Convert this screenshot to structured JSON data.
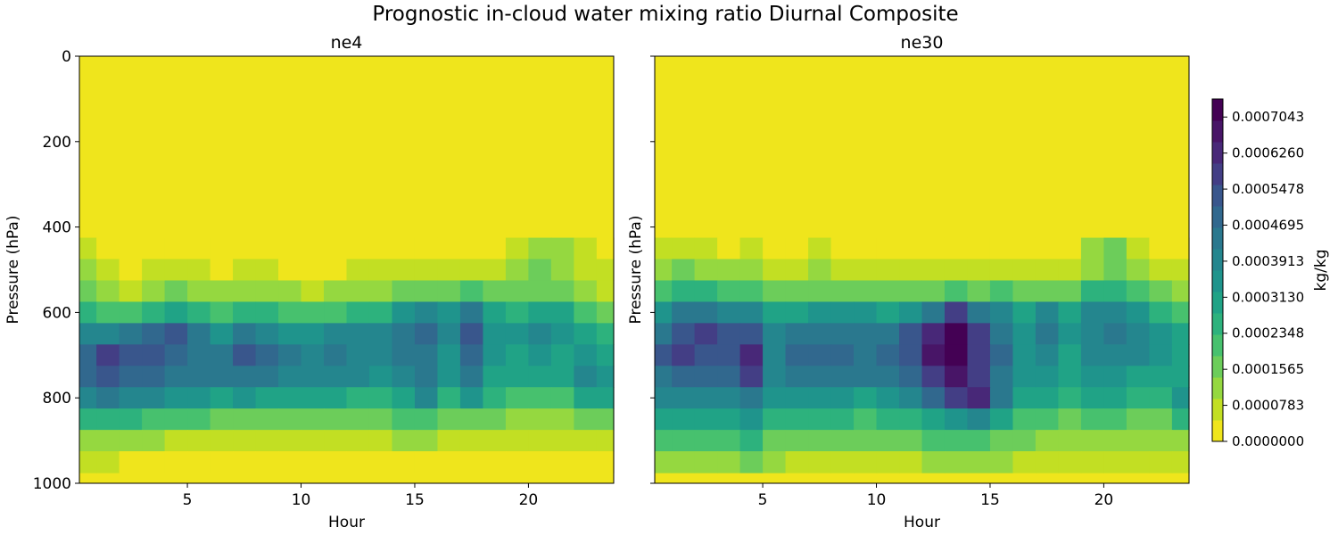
{
  "figure_title": "Prognostic in-cloud water mixing ratio Diurnal Composite",
  "colorbar": {
    "label": "kg/kg",
    "range": [
      0.0,
      0.0007435
    ],
    "tick_values": [
      0.0,
      7.83e-05,
      0.0001565,
      0.0002348,
      0.000313,
      0.0003913,
      0.0004695,
      0.0005478,
      0.000626,
      0.0007043
    ],
    "tick_labels": [
      "0.0000000",
      "0.0000783",
      "0.0001565",
      "0.0002348",
      "0.0003130",
      "0.0003913",
      "0.0004695",
      "0.0005478",
      "0.0006260",
      "0.0007043"
    ],
    "colors": [
      "#efe51c",
      "#c2df23",
      "#95d840",
      "#6ccd5a",
      "#47c16e",
      "#2db27d",
      "#20a386",
      "#1f948c",
      "#24868e",
      "#2a788e",
      "#31688e",
      "#39568c",
      "#433e85",
      "#482878",
      "#481567",
      "#440154"
    ]
  },
  "chart_data": [
    {
      "type": "heatmap",
      "subtitle": "ne4",
      "xlabel": "Hour",
      "ylabel": "Pressure (hPa)",
      "x_ticks": [
        5,
        10,
        15,
        20
      ],
      "y_ticks": [
        0,
        200,
        400,
        600,
        800,
        1000
      ],
      "xlim": [
        0.25,
        23.75
      ],
      "ylim": [
        1000,
        0
      ],
      "y_inverted": true,
      "x": [
        0.5,
        1.5,
        2.5,
        3.5,
        4.5,
        5.5,
        6.5,
        7.5,
        8.5,
        9.5,
        10.5,
        11.5,
        12.5,
        13.5,
        14.5,
        15.5,
        16.5,
        17.5,
        18.5,
        19.5,
        20.5,
        21.5,
        22.5,
        23.5
      ],
      "y": [
        450,
        500,
        550,
        600,
        650,
        700,
        750,
        800,
        850,
        900,
        950
      ],
      "z_units": "kg/kg",
      "z": [
        [
          6e-05,
          2e-05,
          1e-05,
          2e-05,
          3e-05,
          3e-05,
          1e-05,
          2e-05,
          3e-05,
          2e-05,
          1e-05,
          2e-05,
          3e-05,
          2e-05,
          3e-05,
          3e-05,
          2e-05,
          2e-05,
          3e-05,
          8e-05,
          0.00012,
          0.0001,
          5e-05,
          3e-05
        ],
        [
          0.0001,
          5e-05,
          3e-05,
          5e-05,
          7e-05,
          6e-05,
          4e-05,
          5e-05,
          6e-05,
          4e-05,
          3e-05,
          4e-05,
          6e-05,
          5e-05,
          7e-05,
          7e-05,
          6e-05,
          6e-05,
          6e-05,
          0.0001,
          0.00014,
          0.00012,
          8e-05,
          5e-05
        ],
        [
          0.00016,
          0.0001,
          8e-05,
          0.00012,
          0.00014,
          0.00012,
          0.0001,
          0.00011,
          0.00012,
          0.0001,
          8e-05,
          0.0001,
          0.00012,
          0.00011,
          0.00016,
          0.00018,
          0.00016,
          0.00019,
          0.00015,
          0.00015,
          0.00018,
          0.00016,
          0.00012,
          9e-05
        ],
        [
          0.00026,
          0.00022,
          0.00023,
          0.00026,
          0.0003,
          0.00026,
          0.00022,
          0.00026,
          0.00025,
          0.00022,
          0.0002,
          0.00022,
          0.00025,
          0.00024,
          0.00033,
          0.0004,
          0.00034,
          0.00044,
          0.0003,
          0.00026,
          0.00032,
          0.0003,
          0.00022,
          0.00018
        ],
        [
          0.00038,
          0.00038,
          0.00045,
          0.0005,
          0.00052,
          0.00042,
          0.00036,
          0.00046,
          0.0004,
          0.00036,
          0.00034,
          0.00038,
          0.0004,
          0.00039,
          0.00046,
          0.0005,
          0.0004,
          0.00054,
          0.00036,
          0.00034,
          0.0004,
          0.00036,
          0.0003,
          0.00026
        ],
        [
          0.0005,
          0.00056,
          0.00054,
          0.00052,
          0.0005,
          0.00046,
          0.00044,
          0.00054,
          0.00048,
          0.00042,
          0.0004,
          0.00044,
          0.0004,
          0.00038,
          0.00042,
          0.00044,
          0.00036,
          0.00048,
          0.00034,
          0.00032,
          0.00036,
          0.0003,
          0.00034,
          0.00032
        ],
        [
          0.00048,
          0.00052,
          0.0005,
          0.00048,
          0.00046,
          0.00044,
          0.00042,
          0.00046,
          0.00044,
          0.0004,
          0.00038,
          0.0004,
          0.00038,
          0.00036,
          0.0004,
          0.00046,
          0.00034,
          0.00044,
          0.00032,
          0.0003,
          0.00032,
          0.00028,
          0.0004,
          0.00036
        ],
        [
          0.00038,
          0.00042,
          0.0004,
          0.00038,
          0.00036,
          0.00036,
          0.00032,
          0.00034,
          0.00032,
          0.0003,
          0.00028,
          0.00028,
          0.00026,
          0.00026,
          0.00032,
          0.0004,
          0.00026,
          0.00034,
          0.00026,
          0.00022,
          0.00022,
          0.0002,
          0.0003,
          0.00028
        ],
        [
          0.00024,
          0.00026,
          0.00024,
          0.00022,
          0.0002,
          0.0002,
          0.00018,
          0.00018,
          0.00018,
          0.00017,
          0.00016,
          0.00016,
          0.00015,
          0.00016,
          0.0002,
          0.00022,
          0.00016,
          0.00018,
          0.00016,
          0.00013,
          0.00013,
          0.00012,
          0.00016,
          0.00015
        ],
        [
          0.00012,
          0.00012,
          0.0001,
          0.0001,
          9e-05,
          9e-05,
          8e-05,
          8e-05,
          8e-05,
          8e-05,
          8e-05,
          8e-05,
          8e-05,
          8e-05,
          0.0001,
          0.00011,
          8e-05,
          9e-05,
          8e-05,
          7e-05,
          7e-05,
          6e-05,
          8e-05,
          8e-05
        ],
        [
          5e-05,
          5e-05,
          3e-05,
          3e-05,
          3e-05,
          3e-05,
          2e-05,
          2e-05,
          2e-05,
          2e-05,
          2e-05,
          2e-05,
          2e-05,
          3e-05,
          4e-05,
          4e-05,
          2e-05,
          3e-05,
          2e-05,
          2e-05,
          2e-05,
          2e-05,
          3e-05,
          3e-05
        ]
      ]
    },
    {
      "type": "heatmap",
      "subtitle": "ne30",
      "xlabel": "Hour",
      "ylabel": "Pressure (hPa)",
      "x_ticks": [
        5,
        10,
        15,
        20
      ],
      "y_ticks": [
        0,
        200,
        400,
        600,
        800,
        1000
      ],
      "xlim": [
        0.25,
        23.75
      ],
      "ylim": [
        1000,
        0
      ],
      "y_inverted": true,
      "x": [
        0.5,
        1.5,
        2.5,
        3.5,
        4.5,
        5.5,
        6.5,
        7.5,
        8.5,
        9.5,
        10.5,
        11.5,
        12.5,
        13.5,
        14.5,
        15.5,
        16.5,
        17.5,
        18.5,
        19.5,
        20.5,
        21.5,
        22.5,
        23.5
      ],
      "y": [
        450,
        500,
        550,
        600,
        650,
        700,
        750,
        800,
        850,
        900,
        950
      ],
      "z_units": "kg/kg",
      "z": [
        [
          6e-05,
          8e-05,
          6e-05,
          4e-05,
          5e-05,
          3e-05,
          4e-05,
          5e-05,
          3e-05,
          4e-05,
          3e-05,
          2e-05,
          3e-05,
          3e-05,
          4e-05,
          3e-05,
          2e-05,
          2e-05,
          3e-05,
          0.0001,
          0.00014,
          6e-05,
          4e-05,
          3e-05
        ],
        [
          0.00012,
          0.00014,
          0.00012,
          0.0001,
          0.0001,
          8e-05,
          8e-05,
          0.0001,
          8e-05,
          8e-05,
          7e-05,
          6e-05,
          7e-05,
          8e-05,
          8e-05,
          7e-05,
          6e-05,
          7e-05,
          8e-05,
          0.00012,
          0.00016,
          0.0001,
          7e-05,
          6e-05
        ],
        [
          0.00022,
          0.00024,
          0.00026,
          0.00022,
          0.00022,
          0.00018,
          0.00016,
          0.00018,
          0.00016,
          0.00016,
          0.00016,
          0.00016,
          0.00018,
          0.0002,
          0.00018,
          0.0002,
          0.00014,
          0.00018,
          0.00016,
          0.00024,
          0.00026,
          0.00022,
          0.00014,
          0.00012
        ],
        [
          0.00036,
          0.00044,
          0.00046,
          0.0004,
          0.0004,
          0.0003,
          0.0003,
          0.00036,
          0.00034,
          0.00034,
          0.00032,
          0.00036,
          0.00046,
          0.00056,
          0.00046,
          0.0004,
          0.00028,
          0.0004,
          0.0003,
          0.0004,
          0.0004,
          0.00036,
          0.00024,
          0.0002
        ],
        [
          0.00046,
          0.00054,
          0.00056,
          0.00052,
          0.00054,
          0.0004,
          0.00044,
          0.00046,
          0.00046,
          0.00046,
          0.00046,
          0.00052,
          0.00064,
          0.00072,
          0.00056,
          0.00046,
          0.00034,
          0.00044,
          0.00034,
          0.0004,
          0.00042,
          0.0004,
          0.00034,
          0.00028
        ],
        [
          0.00052,
          0.00056,
          0.00054,
          0.00052,
          0.00062,
          0.0004,
          0.0005,
          0.00048,
          0.0005,
          0.00046,
          0.0005,
          0.00054,
          0.00066,
          0.00072,
          0.00056,
          0.00048,
          0.00036,
          0.0004,
          0.00032,
          0.00038,
          0.0004,
          0.00038,
          0.00036,
          0.0003
        ],
        [
          0.00046,
          0.0005,
          0.0005,
          0.00048,
          0.00056,
          0.0004,
          0.00046,
          0.00044,
          0.00044,
          0.00042,
          0.00046,
          0.0005,
          0.00058,
          0.00066,
          0.00056,
          0.00046,
          0.00034,
          0.00036,
          0.0003,
          0.00034,
          0.00034,
          0.00032,
          0.0003,
          0.0003
        ],
        [
          0.00038,
          0.0004,
          0.0004,
          0.0004,
          0.00044,
          0.00034,
          0.00036,
          0.00034,
          0.00034,
          0.00032,
          0.00036,
          0.0004,
          0.0005,
          0.0006,
          0.00062,
          0.00044,
          0.0003,
          0.00028,
          0.00024,
          0.0003,
          0.00028,
          0.00026,
          0.00026,
          0.00036
        ],
        [
          0.0003,
          0.0003,
          0.0003,
          0.0003,
          0.00034,
          0.00026,
          0.00026,
          0.00024,
          0.00024,
          0.00022,
          0.00024,
          0.00026,
          0.0003,
          0.00034,
          0.0004,
          0.00032,
          0.00022,
          0.0002,
          0.00016,
          0.00022,
          0.0002,
          0.00018,
          0.00018,
          0.00024
        ],
        [
          0.0002,
          0.00022,
          0.00022,
          0.00022,
          0.00026,
          0.00018,
          0.00016,
          0.00016,
          0.00014,
          0.00014,
          0.00014,
          0.00016,
          0.0002,
          0.00022,
          0.00022,
          0.00018,
          0.00014,
          0.00012,
          0.0001,
          0.00012,
          0.00012,
          0.0001,
          0.0001,
          0.00012
        ],
        [
          0.0001,
          0.00012,
          0.00012,
          0.00012,
          0.00014,
          0.0001,
          8e-05,
          8e-05,
          7e-05,
          7e-05,
          7e-05,
          8e-05,
          0.0001,
          0.00012,
          0.00012,
          0.0001,
          8e-05,
          7e-05,
          6e-05,
          7e-05,
          6e-05,
          5e-05,
          5e-05,
          6e-05
        ]
      ]
    }
  ]
}
